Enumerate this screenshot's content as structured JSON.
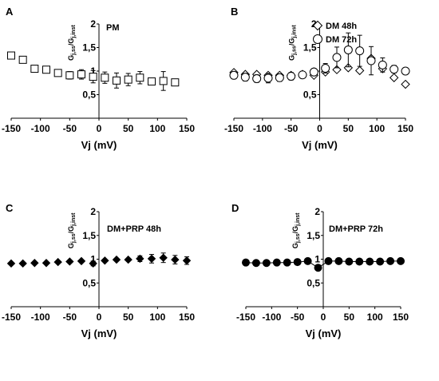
{
  "figure": {
    "shared": {
      "xlabel": "Vj (mV)",
      "ylabel_main": "G",
      "ylabel_sub1": "j,ss",
      "ylabel_sep": "/G",
      "ylabel_sub2": "j,inst"
    }
  },
  "chart_data": [
    {
      "panel": "A",
      "type": "scatter",
      "title": "PM",
      "xlabel": "Vj (mV)",
      "ylabel": "Gj,ss/Gj,inst",
      "xlim": [
        -150,
        150
      ],
      "ylim": [
        0,
        2
      ],
      "x_ticks": [
        -150,
        -100,
        -50,
        0,
        50,
        100,
        150
      ],
      "x_tick_labels": [
        "-150",
        "-100",
        "-50",
        "0",
        "50",
        "100",
        "150"
      ],
      "y_ticks": [
        0.5,
        1,
        1.5,
        2
      ],
      "y_tick_labels": [
        "0,5",
        "1",
        "1,5",
        "2"
      ],
      "series": [
        {
          "marker": "open-square",
          "color": "#000000",
          "points": [
            {
              "x": -150,
              "y": 1.33,
              "err": 0
            },
            {
              "x": -130,
              "y": 1.24,
              "err": 0
            },
            {
              "x": -110,
              "y": 1.05,
              "err": 0
            },
            {
              "x": -90,
              "y": 1.03,
              "err": 0
            },
            {
              "x": -70,
              "y": 0.96,
              "err": 0
            },
            {
              "x": -50,
              "y": 0.91,
              "err": 0.08
            },
            {
              "x": -30,
              "y": 0.93,
              "err": 0.1
            },
            {
              "x": -10,
              "y": 0.88,
              "err": 0.13
            },
            {
              "x": 10,
              "y": 0.86,
              "err": 0.12
            },
            {
              "x": 30,
              "y": 0.8,
              "err": 0.16
            },
            {
              "x": 50,
              "y": 0.82,
              "err": 0.13
            },
            {
              "x": 70,
              "y": 0.86,
              "err": 0.13
            },
            {
              "x": 90,
              "y": 0.78,
              "err": 0.04
            },
            {
              "x": 110,
              "y": 0.79,
              "err": 0.2
            },
            {
              "x": 130,
              "y": 0.76,
              "err": 0
            }
          ]
        }
      ]
    },
    {
      "panel": "B",
      "type": "scatter",
      "title": "",
      "xlabel": "Vj (mV)",
      "ylabel": "Gj,ss/Gj,inst",
      "xlim": [
        -150,
        150
      ],
      "ylim": [
        0,
        2
      ],
      "x_ticks": [
        -150,
        -100,
        -50,
        0,
        50,
        100,
        150
      ],
      "x_tick_labels": [
        "-150",
        "-100",
        "-50",
        "0",
        "50",
        "100",
        "150"
      ],
      "y_ticks": [
        0.5,
        1,
        1.5,
        2
      ],
      "y_tick_labels": [
        "0,5",
        "1",
        "1,5",
        "2"
      ],
      "legend_position": "top-right",
      "series": [
        {
          "name": "DM 48h",
          "marker": "open-diamond",
          "color": "#000000",
          "points": [
            {
              "x": -150,
              "y": 0.97,
              "err": 0
            },
            {
              "x": -130,
              "y": 0.93,
              "err": 0
            },
            {
              "x": -110,
              "y": 0.93,
              "err": 0
            },
            {
              "x": -90,
              "y": 0.91,
              "err": 0
            },
            {
              "x": -70,
              "y": 0.91,
              "err": 0
            },
            {
              "x": -50,
              "y": 0.91,
              "err": 0
            },
            {
              "x": -30,
              "y": 0.93,
              "err": 0
            },
            {
              "x": -10,
              "y": 0.91,
              "err": 0
            },
            {
              "x": 10,
              "y": 0.98,
              "err": 0
            },
            {
              "x": 30,
              "y": 1.03,
              "err": 0
            },
            {
              "x": 50,
              "y": 1.07,
              "err": 0
            },
            {
              "x": 70,
              "y": 1.01,
              "err": 0
            },
            {
              "x": 90,
              "y": 1.27,
              "err": 0
            },
            {
              "x": 110,
              "y": 1.05,
              "err": 0
            },
            {
              "x": 130,
              "y": 0.86,
              "err": 0
            },
            {
              "x": 150,
              "y": 0.72,
              "err": 0
            }
          ]
        },
        {
          "name": "DM 72h",
          "marker": "open-circle",
          "color": "#000000",
          "points": [
            {
              "x": -150,
              "y": 0.91,
              "err": 0.05
            },
            {
              "x": -130,
              "y": 0.87,
              "err": 0.08
            },
            {
              "x": -110,
              "y": 0.84,
              "err": 0.08
            },
            {
              "x": -90,
              "y": 0.85,
              "err": 0.1
            },
            {
              "x": -70,
              "y": 0.86,
              "err": 0.08
            },
            {
              "x": -50,
              "y": 0.89,
              "err": 0.08
            },
            {
              "x": -30,
              "y": 0.92,
              "err": 0.06
            },
            {
              "x": -10,
              "y": 0.98,
              "err": 0.06
            },
            {
              "x": 10,
              "y": 1.06,
              "err": 0.1
            },
            {
              "x": 30,
              "y": 1.29,
              "err": 0.22
            },
            {
              "x": 50,
              "y": 1.45,
              "err": 0.36
            },
            {
              "x": 70,
              "y": 1.43,
              "err": 0.33
            },
            {
              "x": 90,
              "y": 1.22,
              "err": 0.3
            },
            {
              "x": 110,
              "y": 1.13,
              "err": 0.15
            },
            {
              "x": 130,
              "y": 1.04,
              "err": 0.08
            },
            {
              "x": 150,
              "y": 1.0,
              "err": 0.05
            }
          ]
        }
      ]
    },
    {
      "panel": "C",
      "type": "scatter",
      "title": "DM+PRP 48h",
      "xlabel": "Vj (mV)",
      "ylabel": "Gj,ss/Gj,inst",
      "xlim": [
        -150,
        150
      ],
      "ylim": [
        0,
        2
      ],
      "x_ticks": [
        -150,
        -100,
        -50,
        0,
        50,
        100,
        150
      ],
      "x_tick_labels": [
        "-150",
        "-100",
        "-50",
        "0",
        "50",
        "100",
        "150"
      ],
      "y_ticks": [
        0.5,
        1,
        1.5,
        2
      ],
      "y_tick_labels": [
        "0,5",
        "1",
        "1,5",
        "2"
      ],
      "series": [
        {
          "marker": "filled-diamond",
          "color": "#000000",
          "points": [
            {
              "x": -150,
              "y": 0.91,
              "err": 0
            },
            {
              "x": -130,
              "y": 0.91,
              "err": 0
            },
            {
              "x": -110,
              "y": 0.92,
              "err": 0
            },
            {
              "x": -90,
              "y": 0.92,
              "err": 0
            },
            {
              "x": -70,
              "y": 0.94,
              "err": 0
            },
            {
              "x": -50,
              "y": 0.95,
              "err": 0
            },
            {
              "x": -30,
              "y": 0.96,
              "err": 0
            },
            {
              "x": -10,
              "y": 0.91,
              "err": 0.05
            },
            {
              "x": 10,
              "y": 0.97,
              "err": 0
            },
            {
              "x": 30,
              "y": 0.99,
              "err": 0
            },
            {
              "x": 50,
              "y": 0.99,
              "err": 0
            },
            {
              "x": 70,
              "y": 1.01,
              "err": 0.06
            },
            {
              "x": 90,
              "y": 1.01,
              "err": 0.09
            },
            {
              "x": 110,
              "y": 1.03,
              "err": 0.1
            },
            {
              "x": 130,
              "y": 0.99,
              "err": 0.09
            },
            {
              "x": 150,
              "y": 0.97,
              "err": 0.08
            }
          ]
        }
      ]
    },
    {
      "panel": "D",
      "type": "line",
      "title": "DM+PRP 72h",
      "xlabel": "Vj (mV)",
      "ylabel": "Gj,ss/Gj,inst",
      "xlim": [
        -150,
        150
      ],
      "ylim": [
        0,
        2
      ],
      "x_ticks": [
        -150,
        -100,
        -50,
        0,
        50,
        100,
        150
      ],
      "x_tick_labels": [
        "-150",
        "-100",
        "-50",
        "0",
        "50",
        "100",
        "150"
      ],
      "y_ticks": [
        0.5,
        1,
        1.5,
        2
      ],
      "y_tick_labels": [
        "0,5",
        "1",
        "1,5",
        "2"
      ],
      "series": [
        {
          "marker": "filled-circle",
          "color": "#000000",
          "connect": true,
          "points": [
            {
              "x": -150,
              "y": 0.93,
              "err": 0
            },
            {
              "x": -130,
              "y": 0.92,
              "err": 0
            },
            {
              "x": -110,
              "y": 0.92,
              "err": 0
            },
            {
              "x": -90,
              "y": 0.93,
              "err": 0
            },
            {
              "x": -70,
              "y": 0.93,
              "err": 0
            },
            {
              "x": -50,
              "y": 0.94,
              "err": 0
            },
            {
              "x": -30,
              "y": 0.96,
              "err": 0
            },
            {
              "x": -10,
              "y": 0.82,
              "err": 0.05
            },
            {
              "x": 10,
              "y": 0.96,
              "err": 0.04
            },
            {
              "x": 30,
              "y": 0.96,
              "err": 0
            },
            {
              "x": 50,
              "y": 0.95,
              "err": 0
            },
            {
              "x": 70,
              "y": 0.95,
              "err": 0
            },
            {
              "x": 90,
              "y": 0.95,
              "err": 0
            },
            {
              "x": 110,
              "y": 0.95,
              "err": 0
            },
            {
              "x": 130,
              "y": 0.96,
              "err": 0
            },
            {
              "x": 150,
              "y": 0.96,
              "err": 0
            }
          ]
        }
      ]
    }
  ]
}
